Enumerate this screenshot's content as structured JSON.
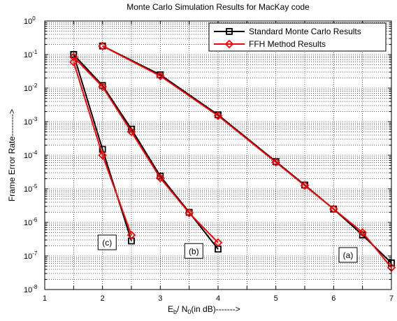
{
  "chart_data": {
    "type": "line",
    "title": "Monte Carlo Simulation Results for MacKay code",
    "xlabel": {
      "base": "E",
      "sub1": "b",
      "mid": "/ N",
      "sub2": "0",
      "tail": "(in dB)------->"
    },
    "ylabel": "Frame Error Rate-------->",
    "xlim": [
      1,
      7
    ],
    "ylim": [
      1e-08,
      1
    ],
    "yscale": "log",
    "grid": true,
    "legend_position": "top-right",
    "xticks": [
      "1",
      "2",
      "3",
      "4",
      "5",
      "6",
      "7"
    ],
    "yticks": [
      {
        "base": "10",
        "exp": "-8"
      },
      {
        "base": "10",
        "exp": "-7"
      },
      {
        "base": "10",
        "exp": "-6"
      },
      {
        "base": "10",
        "exp": "-5"
      },
      {
        "base": "10",
        "exp": "-4"
      },
      {
        "base": "10",
        "exp": "-3"
      },
      {
        "base": "10",
        "exp": "-2"
      },
      {
        "base": "10",
        "exp": "-1"
      },
      {
        "base": "10",
        "exp": "0"
      }
    ],
    "series": [
      {
        "name": "Standard Monte Carlo Results",
        "color": "#000000",
        "marker": "square",
        "curves": [
          {
            "x": [
              2,
              3,
              4,
              5,
              5.5,
              6,
              6.5,
              7
            ],
            "y": [
              0.18,
              0.025,
              0.0016,
              6.5e-05,
              1.3e-05,
              2.5e-06,
              4.2e-07,
              6.2e-08
            ]
          },
          {
            "x": [
              1.5,
              2,
              2.5,
              3,
              3.5,
              4
            ],
            "y": [
              0.1,
              0.012,
              0.0006,
              2.4e-05,
              2e-06,
              1.6e-07
            ]
          },
          {
            "x": [
              1.5,
              2,
              2.5
            ],
            "y": [
              0.1,
              0.00015,
              2.8e-07
            ]
          }
        ]
      },
      {
        "name": "FFH Method Results",
        "color": "#ff0000",
        "marker": "diamond",
        "curves": [
          {
            "x": [
              2,
              3,
              4,
              5,
              5.5,
              6,
              6.5,
              7
            ],
            "y": [
              0.18,
              0.023,
              0.0015,
              6.2e-05,
              1.25e-05,
              2.5e-06,
              5e-07,
              4.5e-08
            ]
          },
          {
            "x": [
              1.5,
              2,
              2.5,
              3,
              3.5,
              4
            ],
            "y": [
              0.085,
              0.011,
              0.0005,
              2.1e-05,
              1.9e-06,
              2.5e-07
            ]
          },
          {
            "x": [
              1.5,
              2,
              2.5
            ],
            "y": [
              0.06,
              0.0001,
              4.2e-07
            ]
          }
        ]
      }
    ],
    "annotations": [
      {
        "text": "(c)",
        "x": 2.08,
        "y": 2.6e-07
      },
      {
        "text": "(b)",
        "x": 3.58,
        "y": 1.45e-07
      },
      {
        "text": "(a)",
        "x": 6.25,
        "y": 1.1e-07
      }
    ]
  }
}
